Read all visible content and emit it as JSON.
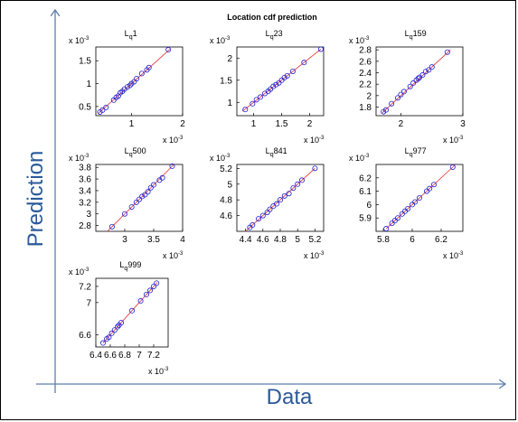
{
  "title": "Location cdf prediction",
  "xlabel": "Data",
  "ylabel": "Prediction",
  "colors": {
    "axis_arrow": "#5b7fb0",
    "label": "#2a5a9a",
    "marker": "#2020d0",
    "fit_line": "#e03030"
  },
  "chart_data": [
    {
      "type": "scatter",
      "title": "L",
      "subscript": "q",
      "suffix": "1",
      "xlim": [
        0.3,
        2.0
      ],
      "ylim": [
        0.3,
        1.8
      ],
      "xticks": [
        "1",
        "2"
      ],
      "xtick_values": [
        1,
        2
      ],
      "yticks": [
        "0.5",
        "1",
        "1.5"
      ],
      "ytick_values": [
        0.5,
        1,
        1.5
      ],
      "exp_x": "x 10",
      "exp_y": "x 10",
      "exp_power": "-3",
      "line": [
        0.35,
        1.75
      ],
      "points": [
        [
          0.38,
          0.38
        ],
        [
          0.43,
          0.42
        ],
        [
          0.5,
          0.48
        ],
        [
          0.65,
          0.64
        ],
        [
          0.7,
          0.7
        ],
        [
          0.74,
          0.73
        ],
        [
          0.78,
          0.8
        ],
        [
          0.82,
          0.83
        ],
        [
          0.86,
          0.88
        ],
        [
          0.92,
          0.93
        ],
        [
          0.97,
          0.96
        ],
        [
          1.0,
          1.0
        ],
        [
          1.05,
          1.04
        ],
        [
          1.1,
          1.11
        ],
        [
          1.2,
          1.22
        ],
        [
          1.3,
          1.3
        ],
        [
          1.34,
          1.35
        ],
        [
          1.72,
          1.74
        ]
      ]
    },
    {
      "type": "scatter",
      "title": "L",
      "subscript": "q",
      "suffix": "23",
      "xlim": [
        0.7,
        2.25
      ],
      "ylim": [
        0.7,
        2.25
      ],
      "xticks": [
        "1",
        "1.5",
        "2"
      ],
      "xtick_values": [
        1,
        1.5,
        2
      ],
      "yticks": [
        "1",
        "1.5",
        "2"
      ],
      "ytick_values": [
        1,
        1.5,
        2
      ],
      "exp_x": "x 10",
      "exp_y": "x 10",
      "exp_power": "-3",
      "line": [
        0.8,
        2.2
      ],
      "points": [
        [
          0.85,
          0.84
        ],
        [
          0.98,
          0.97
        ],
        [
          1.05,
          1.06
        ],
        [
          1.12,
          1.12
        ],
        [
          1.2,
          1.2
        ],
        [
          1.26,
          1.25
        ],
        [
          1.3,
          1.3
        ],
        [
          1.35,
          1.36
        ],
        [
          1.4,
          1.4
        ],
        [
          1.45,
          1.44
        ],
        [
          1.5,
          1.5
        ],
        [
          1.55,
          1.56
        ],
        [
          1.6,
          1.6
        ],
        [
          1.7,
          1.7
        ],
        [
          1.9,
          1.9
        ],
        [
          2.2,
          2.2
        ]
      ]
    },
    {
      "type": "scatter",
      "title": "L",
      "subscript": "q",
      "suffix": "159",
      "xlim": [
        1.6,
        3.0
      ],
      "ylim": [
        1.65,
        2.85
      ],
      "xticks": [
        "2",
        "3"
      ],
      "xtick_values": [
        2,
        3
      ],
      "yticks": [
        "1.8",
        "2",
        "2.2",
        "2.4",
        "2.6",
        "2.8"
      ],
      "ytick_values": [
        1.8,
        2,
        2.2,
        2.4,
        2.6,
        2.8
      ],
      "exp_x": "x 10",
      "exp_y": "x 10",
      "exp_power": "-3",
      "line": [
        1.7,
        2.8
      ],
      "points": [
        [
          1.72,
          1.72
        ],
        [
          1.76,
          1.75
        ],
        [
          1.85,
          1.86
        ],
        [
          1.95,
          1.96
        ],
        [
          2.0,
          2.02
        ],
        [
          2.05,
          2.07
        ],
        [
          2.15,
          2.16
        ],
        [
          2.2,
          2.22
        ],
        [
          2.25,
          2.27
        ],
        [
          2.28,
          2.3
        ],
        [
          2.3,
          2.32
        ],
        [
          2.35,
          2.36
        ],
        [
          2.4,
          2.42
        ],
        [
          2.45,
          2.45
        ],
        [
          2.5,
          2.5
        ],
        [
          2.75,
          2.76
        ]
      ]
    },
    {
      "type": "scatter",
      "title": "L",
      "subscript": "q",
      "suffix": "500",
      "xlim": [
        2.5,
        4.0
      ],
      "ylim": [
        2.7,
        3.85
      ],
      "xticks": [
        "3",
        "3.5",
        "4"
      ],
      "xtick_values": [
        3,
        3.5,
        4
      ],
      "yticks": [
        "2.8",
        "3",
        "3.2",
        "3.4",
        "3.6",
        "3.8"
      ],
      "ytick_values": [
        2.8,
        3,
        3.2,
        3.4,
        3.6,
        3.8
      ],
      "exp_x": "x 10",
      "exp_y": "x 10",
      "exp_power": "-3",
      "line": [
        2.7,
        3.85
      ],
      "points": [
        [
          2.78,
          2.78
        ],
        [
          3.0,
          3.0
        ],
        [
          3.12,
          3.12
        ],
        [
          3.2,
          3.2
        ],
        [
          3.25,
          3.25
        ],
        [
          3.3,
          3.3
        ],
        [
          3.35,
          3.33
        ],
        [
          3.4,
          3.38
        ],
        [
          3.45,
          3.45
        ],
        [
          3.5,
          3.5
        ],
        [
          3.6,
          3.58
        ],
        [
          3.65,
          3.62
        ],
        [
          3.82,
          3.82
        ]
      ]
    },
    {
      "type": "scatter",
      "title": "L",
      "subscript": "q",
      "suffix": "841",
      "xlim": [
        4.3,
        5.3
      ],
      "ylim": [
        4.4,
        5.25
      ],
      "xticks": [
        "4.4",
        "4.6",
        "4.8",
        "5",
        "5.2"
      ],
      "xtick_values": [
        4.4,
        4.6,
        4.8,
        5,
        5.2
      ],
      "yticks": [
        "4.6",
        "4.8",
        "5",
        "5.2"
      ],
      "ytick_values": [
        4.6,
        4.8,
        5,
        5.2
      ],
      "exp_x": "x 10",
      "exp_y": "x 10",
      "exp_power": "-3",
      "line": [
        4.4,
        5.2
      ],
      "points": [
        [
          4.45,
          4.45
        ],
        [
          4.48,
          4.48
        ],
        [
          4.55,
          4.56
        ],
        [
          4.6,
          4.6
        ],
        [
          4.65,
          4.64
        ],
        [
          4.68,
          4.68
        ],
        [
          4.72,
          4.72
        ],
        [
          4.76,
          4.75
        ],
        [
          4.8,
          4.8
        ],
        [
          4.85,
          4.85
        ],
        [
          4.9,
          4.88
        ],
        [
          4.95,
          4.95
        ],
        [
          5.0,
          5.0
        ],
        [
          5.05,
          5.05
        ],
        [
          5.2,
          5.2
        ]
      ]
    },
    {
      "type": "scatter",
      "title": "L",
      "subscript": "q",
      "suffix": "977",
      "xlim": [
        5.75,
        6.35
      ],
      "ylim": [
        5.8,
        6.3
      ],
      "xticks": [
        "5.8",
        "6",
        "6.2"
      ],
      "xtick_values": [
        5.8,
        6,
        6.2
      ],
      "yticks": [
        "5.9",
        "6",
        "6.1",
        "6.2"
      ],
      "ytick_values": [
        5.9,
        6,
        6.1,
        6.2
      ],
      "exp_x": "x 10",
      "exp_y": "x 10",
      "exp_power": "-3",
      "line": [
        5.82,
        6.3
      ],
      "points": [
        [
          5.82,
          5.82
        ],
        [
          5.86,
          5.86
        ],
        [
          5.88,
          5.88
        ],
        [
          5.9,
          5.9
        ],
        [
          5.93,
          5.93
        ],
        [
          5.95,
          5.95
        ],
        [
          5.97,
          5.97
        ],
        [
          6.0,
          6.0
        ],
        [
          6.02,
          6.02
        ],
        [
          6.05,
          6.05
        ],
        [
          6.1,
          6.1
        ],
        [
          6.12,
          6.12
        ],
        [
          6.15,
          6.15
        ],
        [
          6.28,
          6.28
        ]
      ]
    },
    {
      "type": "scatter",
      "title": "L",
      "subscript": "q",
      "suffix": "999",
      "xlim": [
        6.4,
        7.4
      ],
      "ylim": [
        6.45,
        7.3
      ],
      "xticks": [
        "6.4",
        "6.6",
        "6.8",
        "7",
        "7.2"
      ],
      "xtick_values": [
        6.4,
        6.6,
        6.8,
        7,
        7.2
      ],
      "yticks": [
        "6.6",
        "7",
        "7.2"
      ],
      "ytick_values": [
        6.6,
        7,
        7.2
      ],
      "exp_x": "x 10",
      "exp_y": "x 10",
      "exp_power": "-3",
      "line": [
        6.5,
        7.25
      ],
      "points": [
        [
          6.5,
          6.5
        ],
        [
          6.55,
          6.55
        ],
        [
          6.58,
          6.57
        ],
        [
          6.62,
          6.62
        ],
        [
          6.66,
          6.66
        ],
        [
          6.7,
          6.7
        ],
        [
          6.72,
          6.72
        ],
        [
          6.75,
          6.75
        ],
        [
          6.9,
          6.9
        ],
        [
          7.02,
          7.02
        ],
        [
          7.1,
          7.1
        ],
        [
          7.15,
          7.15
        ],
        [
          7.2,
          7.2
        ],
        [
          7.24,
          7.24
        ]
      ]
    }
  ]
}
